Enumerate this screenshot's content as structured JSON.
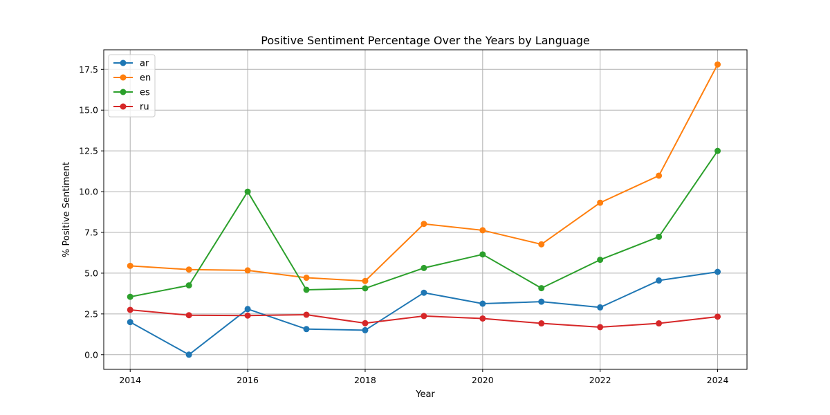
{
  "chart_data": {
    "type": "line",
    "title": "Positive Sentiment Percentage Over the Years by Language",
    "xlabel": "Year",
    "ylabel": "% Positive Sentiment",
    "x": [
      2014,
      2015,
      2016,
      2017,
      2018,
      2019,
      2020,
      2021,
      2022,
      2023,
      2024
    ],
    "xlim": [
      2013.55,
      2024.5
    ],
    "ylim": [
      -0.9,
      18.7
    ],
    "x_ticks": [
      2014,
      2016,
      2018,
      2020,
      2022,
      2024
    ],
    "x_tick_labels": [
      "2014",
      "2016",
      "2018",
      "2020",
      "2022",
      "2024"
    ],
    "y_ticks": [
      0,
      2.5,
      5,
      7.5,
      10,
      12.5,
      15,
      17.5
    ],
    "y_tick_labels": [
      "0.0",
      "2.5",
      "5.0",
      "7.5",
      "10.0",
      "12.5",
      "15.0",
      "17.5"
    ],
    "grid": true,
    "legend_position": "top-left",
    "series": [
      {
        "name": "ar",
        "color": "#1f77b4",
        "values": [
          2.0,
          0.0,
          2.8,
          1.57,
          1.5,
          3.8,
          3.13,
          3.25,
          2.9,
          4.55,
          5.08
        ]
      },
      {
        "name": "en",
        "color": "#ff7f0e",
        "values": [
          5.45,
          5.22,
          5.17,
          4.72,
          4.52,
          8.02,
          7.63,
          6.77,
          9.32,
          10.98,
          17.8
        ]
      },
      {
        "name": "es",
        "color": "#2ca02c",
        "values": [
          3.55,
          4.25,
          10.0,
          3.98,
          4.07,
          5.32,
          6.15,
          4.08,
          5.82,
          7.23,
          12.5
        ]
      },
      {
        "name": "ru",
        "color": "#d62728",
        "values": [
          2.75,
          2.42,
          2.4,
          2.45,
          1.93,
          2.37,
          2.22,
          1.92,
          1.69,
          1.92,
          2.33
        ]
      }
    ]
  }
}
